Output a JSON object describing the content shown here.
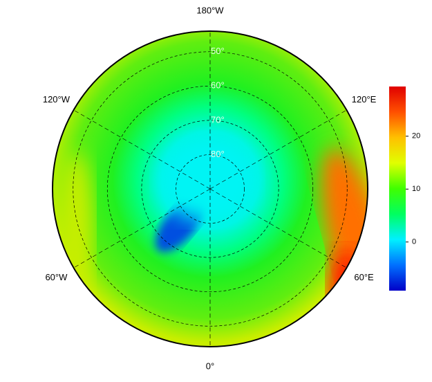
{
  "map": {
    "type": "polar-map",
    "lat_lim": [
      44,
      90
    ],
    "latitudes": [
      {
        "value": 50,
        "label": "50°"
      },
      {
        "value": 60,
        "label": "60°"
      },
      {
        "value": 70,
        "label": "70°"
      },
      {
        "value": 80,
        "label": "80°"
      }
    ],
    "longitudes": [
      {
        "value": 180,
        "label": "180°W"
      },
      {
        "value": 120,
        "label": "120°E"
      },
      {
        "value": 60,
        "label": "60°E"
      },
      {
        "value": 0,
        "label": "0°"
      },
      {
        "value": -60,
        "label": "60°W"
      },
      {
        "value": -120,
        "label": "120°W"
      }
    ],
    "colorbar": {
      "lim": [
        -9.2,
        29.4
      ],
      "ticks": [
        0,
        10,
        20
      ],
      "colors": [
        "#0000c8",
        "#0070ff",
        "#00f0ff",
        "#00ff60",
        "#40ff00",
        "#e0ff00",
        "#ffc000",
        "#ff5000",
        "#e00000"
      ]
    }
  }
}
